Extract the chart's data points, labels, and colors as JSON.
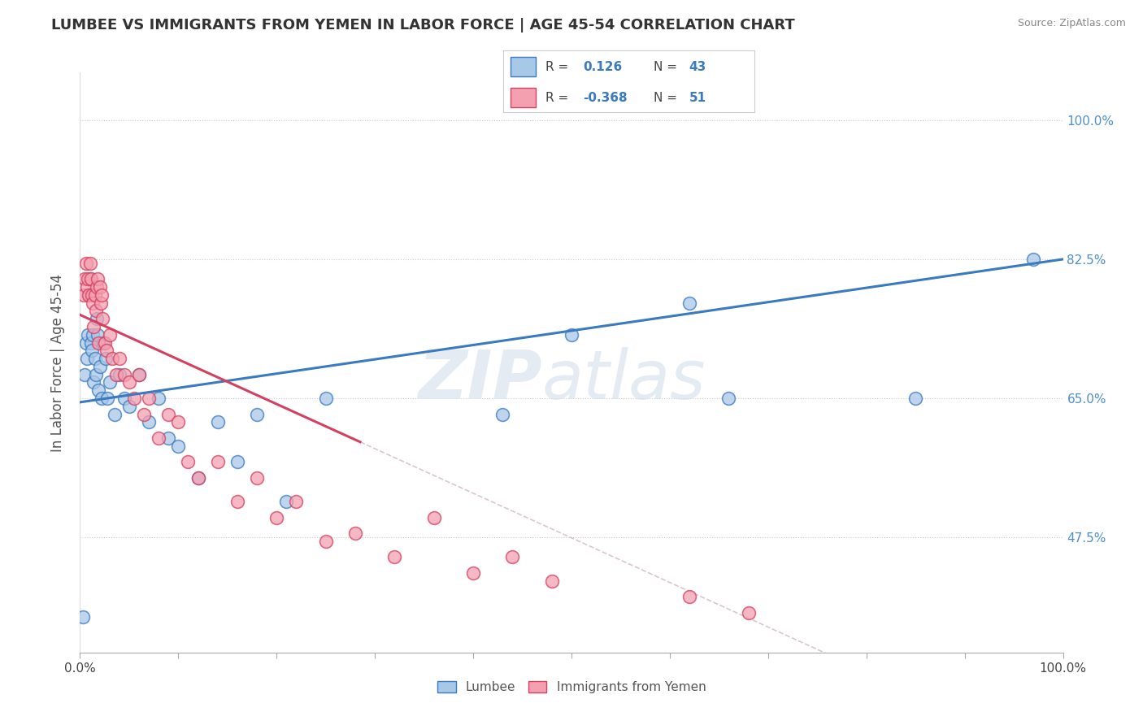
{
  "title": "LUMBEE VS IMMIGRANTS FROM YEMEN IN LABOR FORCE | AGE 45-54 CORRELATION CHART",
  "source_text": "Source: ZipAtlas.com",
  "ylabel": "In Labor Force | Age 45-54",
  "xlabel": "",
  "xlim": [
    0.0,
    1.0
  ],
  "ylim": [
    0.33,
    1.06
  ],
  "x_tick_labels": [
    "0.0%",
    "",
    "",
    "",
    "",
    "100.0%"
  ],
  "x_tick_values": [
    0.0,
    0.1,
    0.2,
    0.3,
    0.5,
    1.0
  ],
  "y_tick_labels": [
    "47.5%",
    "65.0%",
    "82.5%",
    "100.0%"
  ],
  "y_tick_values": [
    0.475,
    0.65,
    0.825,
    1.0
  ],
  "legend_label1": "Lumbee",
  "legend_label2": "Immigrants from Yemen",
  "R1": "0.126",
  "N1": "43",
  "R2": "-0.368",
  "N2": "51",
  "blue_color": "#a8c8e8",
  "pink_color": "#f4a0b0",
  "blue_line_color": "#3a7abf",
  "pink_line_color": "#d44060",
  "blue_line_start_y": 0.645,
  "blue_line_end_y": 0.825,
  "pink_line_start_y": 0.755,
  "pink_line_start_x": 0.0,
  "pink_line_end_x": 0.285,
  "pink_line_end_y": 0.595,
  "lumbee_x": [
    0.003,
    0.005,
    0.006,
    0.007,
    0.008,
    0.009,
    0.01,
    0.011,
    0.012,
    0.013,
    0.014,
    0.015,
    0.016,
    0.017,
    0.018,
    0.019,
    0.02,
    0.022,
    0.024,
    0.026,
    0.028,
    0.03,
    0.035,
    0.04,
    0.045,
    0.05,
    0.06,
    0.07,
    0.08,
    0.09,
    0.1,
    0.12,
    0.14,
    0.16,
    0.18,
    0.21,
    0.25,
    0.43,
    0.5,
    0.62,
    0.66,
    0.85,
    0.97
  ],
  "lumbee_y": [
    0.375,
    0.68,
    0.72,
    0.7,
    0.73,
    0.78,
    0.8,
    0.72,
    0.71,
    0.73,
    0.67,
    0.7,
    0.68,
    0.75,
    0.73,
    0.66,
    0.69,
    0.65,
    0.72,
    0.7,
    0.65,
    0.67,
    0.63,
    0.68,
    0.65,
    0.64,
    0.68,
    0.62,
    0.65,
    0.6,
    0.59,
    0.55,
    0.62,
    0.57,
    0.63,
    0.52,
    0.65,
    0.63,
    0.73,
    0.77,
    0.65,
    0.65,
    0.825
  ],
  "yemen_x": [
    0.004,
    0.005,
    0.006,
    0.007,
    0.008,
    0.009,
    0.01,
    0.011,
    0.012,
    0.013,
    0.014,
    0.015,
    0.016,
    0.017,
    0.018,
    0.019,
    0.02,
    0.021,
    0.022,
    0.023,
    0.025,
    0.027,
    0.03,
    0.033,
    0.037,
    0.04,
    0.045,
    0.05,
    0.055,
    0.06,
    0.065,
    0.07,
    0.08,
    0.09,
    0.1,
    0.11,
    0.12,
    0.14,
    0.16,
    0.18,
    0.2,
    0.22,
    0.25,
    0.28,
    0.32,
    0.36,
    0.4,
    0.44,
    0.48,
    0.62,
    0.68
  ],
  "yemen_y": [
    0.78,
    0.8,
    0.82,
    0.79,
    0.8,
    0.78,
    0.82,
    0.8,
    0.78,
    0.77,
    0.74,
    0.78,
    0.76,
    0.79,
    0.8,
    0.72,
    0.79,
    0.77,
    0.78,
    0.75,
    0.72,
    0.71,
    0.73,
    0.7,
    0.68,
    0.7,
    0.68,
    0.67,
    0.65,
    0.68,
    0.63,
    0.65,
    0.6,
    0.63,
    0.62,
    0.57,
    0.55,
    0.57,
    0.52,
    0.55,
    0.5,
    0.52,
    0.47,
    0.48,
    0.45,
    0.5,
    0.43,
    0.45,
    0.42,
    0.4,
    0.38
  ]
}
